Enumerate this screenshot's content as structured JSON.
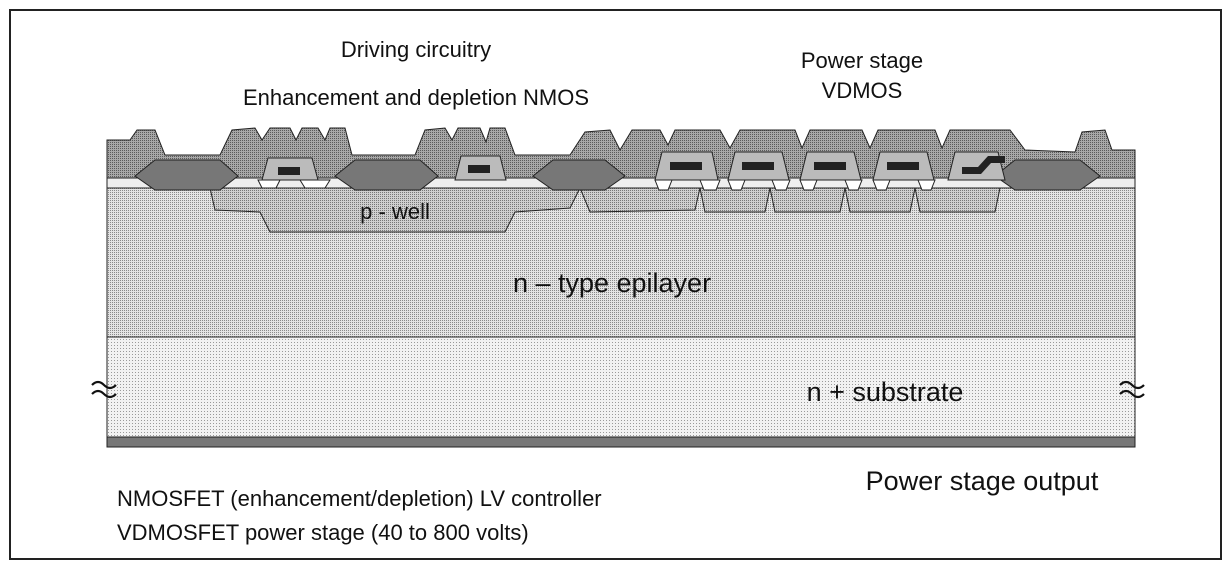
{
  "header": {
    "driving_title": "Driving circuitry",
    "driving_subtitle": "Enhancement and depletion NMOS",
    "power_title": "Power stage",
    "power_subtitle": "VDMOS"
  },
  "regions": {
    "p_well": "p - well",
    "epilayer": "n – type epilayer",
    "substrate": "n + substrate",
    "output": "Power stage output"
  },
  "notes": [
    "NMOSFET (enhancement/depletion) LV controller",
    "VDMOSFET power stage (40 to 800 volts)"
  ]
}
